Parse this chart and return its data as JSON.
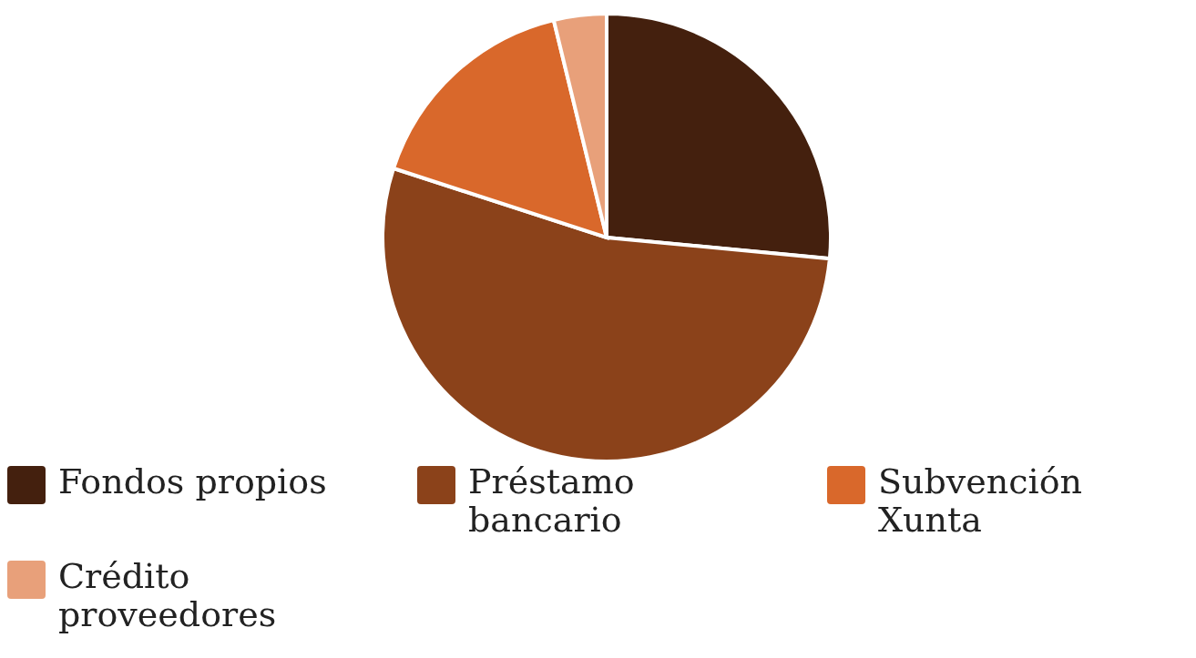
{
  "chart_data": {
    "type": "pie",
    "categories": [
      "Fondos propios",
      "Préstamo bancario",
      "Subvención Xunta",
      "Crédito proveedores"
    ],
    "values": [
      26.5,
      53.5,
      16.2,
      3.8
    ],
    "colors": [
      "#44200e",
      "#8b421a",
      "#d9682b",
      "#e8a07a"
    ],
    "legend": "bottom"
  }
}
